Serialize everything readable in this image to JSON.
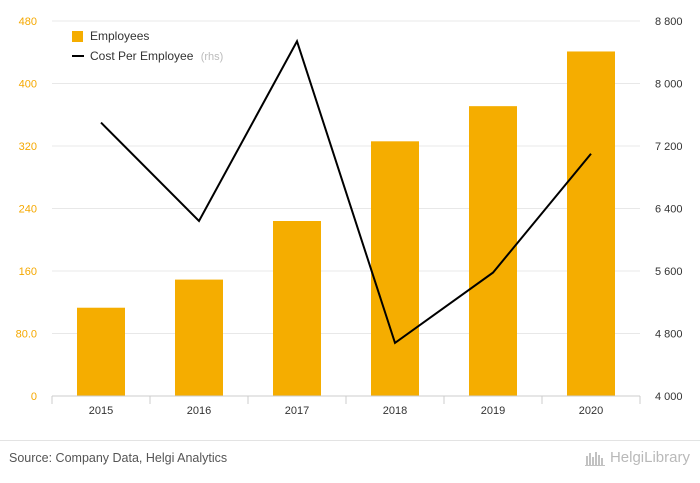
{
  "chart_data": {
    "type": "bar",
    "categories": [
      "2015",
      "2016",
      "2017",
      "2018",
      "2019",
      "2020"
    ],
    "series": [
      {
        "name": "Employees",
        "kind": "bar",
        "axis": "left",
        "values": [
          113,
          149,
          224,
          326,
          371,
          441
        ]
      },
      {
        "name": "Cost Per Employee",
        "name_suffix": "(rhs)",
        "kind": "line",
        "axis": "right",
        "values": [
          7500,
          6240,
          8540,
          4680,
          5580,
          7100
        ]
      }
    ],
    "left_axis": {
      "ylim": [
        0,
        480
      ],
      "ticks": [
        "0",
        "80.0",
        "160",
        "240",
        "320",
        "400",
        "480"
      ]
    },
    "right_axis": {
      "ylim": [
        4000,
        8800
      ],
      "ticks": [
        "4 000",
        "4 800",
        "5 600",
        "6 400",
        "7 200",
        "8 000",
        "8 800"
      ]
    },
    "grid": true,
    "legend": "top-left",
    "colors": {
      "bar": "#f5ad00",
      "line": "#000000",
      "grid": "#e8e8e8",
      "left_ticks": "#f5a800"
    }
  },
  "footer": {
    "source": "Source: Company Data, Helgi Analytics",
    "brand": "HelgiLibrary"
  }
}
